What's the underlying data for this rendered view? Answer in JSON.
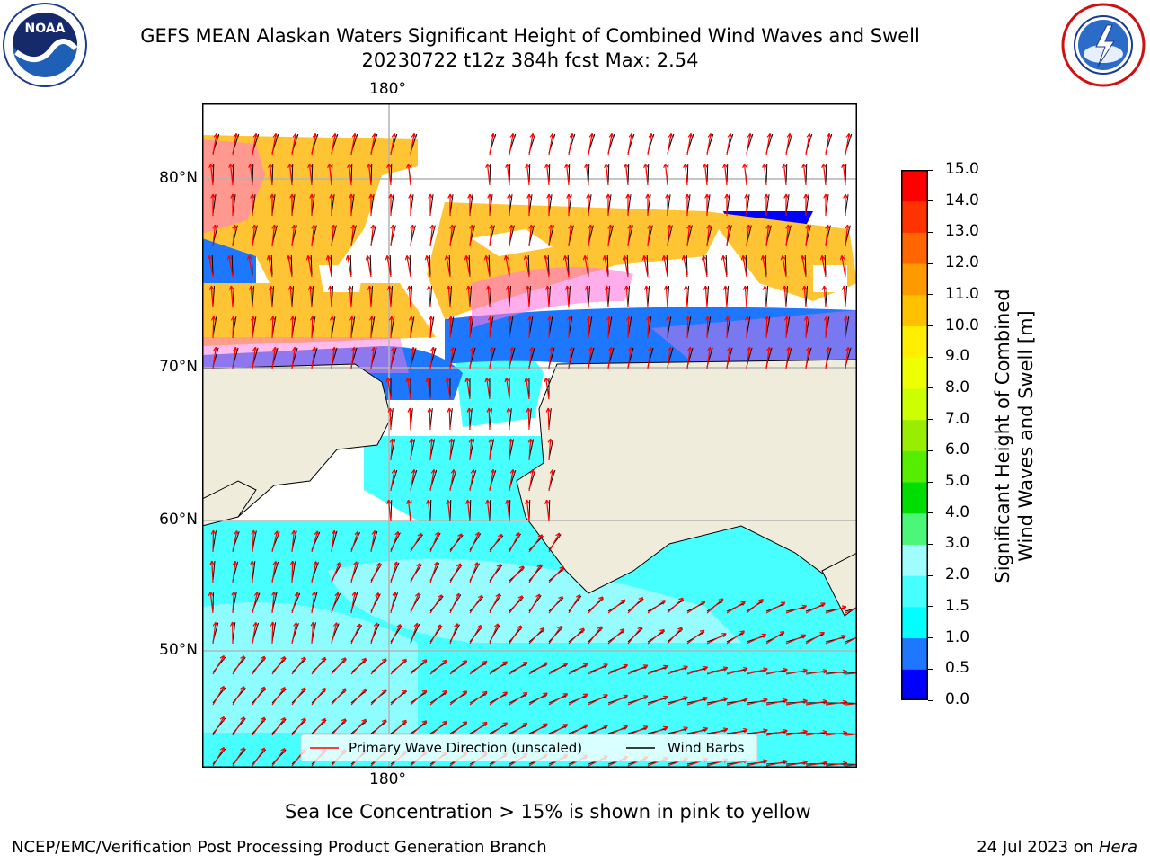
{
  "header": {
    "title_line1": "GEFS MEAN Alaskan Waters Significant Height of Combined Wind Waves and Swell",
    "title_line2": "20230722 t12z 384h fcst   Max: 2.54"
  },
  "logos": {
    "left": {
      "icon": "noaa-logo-icon",
      "text": "NOAA"
    },
    "right": {
      "icon": "nws-logo-icon"
    }
  },
  "map": {
    "lon_label_top": "180°",
    "lon_label_bottom": "180°",
    "lat_labels": [
      "80°N",
      "70°N",
      "60°N",
      "50°N"
    ],
    "legend": {
      "primary_wave": "Primary Wave Direction (unscaled)",
      "wind_barbs": "Wind Barbs"
    },
    "colors": {
      "land": "#efecdc",
      "ice": "#ffc433",
      "ice_edge": "#ff77dd",
      "ocean_light": "#9ffcff",
      "ocean_mid": "#48ffff",
      "ocean_deep": "#1e78ff",
      "ocean_darkest": "#0000ff",
      "arrow": "#ff0000",
      "barb": "#000000"
    }
  },
  "colorbar": {
    "title_line1": "Significant Height of Combined",
    "title_line2": "Wind Waves and Swell [m]",
    "ticks": [
      "0.0",
      "0.5",
      "1.0",
      "1.5",
      "2.0",
      "3.0",
      "4.0",
      "5.0",
      "6.0",
      "7.0",
      "8.0",
      "9.0",
      "10.0",
      "11.0",
      "12.0",
      "13.0",
      "14.0",
      "15.0"
    ],
    "colors": [
      "#0000ff",
      "#1e78ff",
      "#00ffff",
      "#48ffff",
      "#9ffcff",
      "#4cf777",
      "#00dd00",
      "#55ee00",
      "#99ee00",
      "#ccff00",
      "#eeff00",
      "#ffee00",
      "#ffc000",
      "#ff9900",
      "#ff6600",
      "#ff3300",
      "#ff0000"
    ]
  },
  "note": "Sea Ice Concentration > 15% is shown in pink to yellow",
  "footer": {
    "left": "NCEP/EMC/Verification Post Processing Product Generation Branch",
    "right_prefix": "24 Jul 2023 on ",
    "right_host": "Hera"
  }
}
